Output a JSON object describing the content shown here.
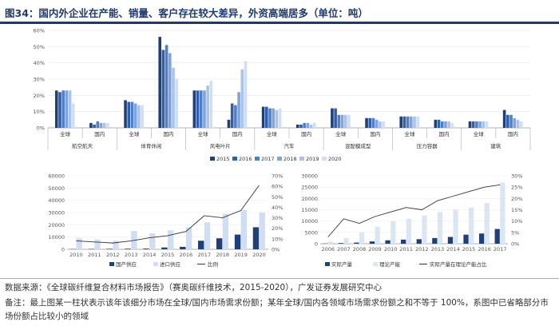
{
  "header": {
    "title": "图34：国内外企业在产能、销量、客户存在较大差异，外资高端居多（单位：吨）"
  },
  "colors": {
    "s2015": "#1f3f78",
    "s2016": "#2e5fa8",
    "s2017": "#4f7fc8",
    "s2018": "#7fa3da",
    "s2019": "#a9c3ea",
    "s2020": "#cfdef3",
    "domestic": "#1f3f78",
    "imports": "#cfdef3",
    "ratio_line": "#333333",
    "capacity": "#dbe6f5"
  },
  "chart_data": [
    {
      "type": "bar",
      "title": "",
      "series_names": [
        "2015",
        "2016",
        "2017",
        "2018",
        "2019",
        "2020"
      ],
      "y_ticks": [
        "0%",
        "10%",
        "20%",
        "30%",
        "40%",
        "50%",
        "60%"
      ],
      "ylim": [
        0,
        60
      ],
      "groups": [
        {
          "name": "航空航天",
          "subs": [
            {
              "name": "全球",
              "values": [
                23,
                22,
                23,
                23,
                23,
                15
              ]
            },
            {
              "name": "国内",
              "values": [
                3,
                2,
                4,
                3,
                3,
                3
              ]
            }
          ]
        },
        {
          "name": "体育休闲",
          "subs": [
            {
              "name": "全球",
              "values": [
                17,
                16,
                16,
                15,
                14,
                14
              ]
            },
            {
              "name": "国内",
              "values": [
                56,
                48,
                51,
                46,
                37,
                30
              ]
            }
          ]
        },
        {
          "name": "风电叶片",
          "subs": [
            {
              "name": "全球",
              "values": [
                23,
                23,
                23,
                23,
                26,
                29
              ]
            },
            {
              "name": "国内",
              "values": [
                5,
                15,
                14,
                22,
                36,
                41
              ]
            }
          ]
        },
        {
          "name": "汽车",
          "subs": [
            {
              "name": "全球",
              "values": [
                13,
                13,
                12,
                12,
                11,
                12
              ]
            },
            {
              "name": "国内",
              "values": [
                2,
                2,
                3,
                3,
                2,
                3
              ]
            }
          ]
        },
        {
          "name": "混配模成型",
          "subs": [
            {
              "name": "全球",
              "values": [
                12,
                12,
                8,
                8,
                8,
                8
              ]
            },
            {
              "name": "国内",
              "values": [
                6,
                6,
                6,
                5,
                4,
                4
              ]
            }
          ]
        },
        {
          "name": "压力容器",
          "subs": [
            {
              "name": "全球",
              "values": [
                7,
                7,
                7,
                7,
                7,
                7
              ]
            },
            {
              "name": "国内",
              "values": [
                5,
                5,
                4,
                4,
                4,
                3
              ]
            }
          ]
        },
        {
          "name": "建筑",
          "subs": [
            {
              "name": "全球",
              "values": [
                4,
                4,
                4,
                4,
                4,
                4
              ]
            },
            {
              "name": "国内",
              "values": [
                11,
                8,
                8,
                6,
                5,
                4
              ]
            }
          ]
        }
      ]
    },
    {
      "type": "bar+line",
      "categories": [
        "2010",
        "2011",
        "2012",
        "2013",
        "2014",
        "2015",
        "2016",
        "2017",
        "2018",
        "2019",
        "2020"
      ],
      "series": [
        {
          "name": "国产供应",
          "values": [
            200,
            300,
            400,
            500,
            600,
            1500,
            2000,
            7000,
            9000,
            12000,
            18000
          ]
        },
        {
          "name": "进口供应",
          "values": [
            9000,
            8000,
            7000,
            15000,
            13000,
            15500,
            18000,
            22000,
            29000,
            32000,
            30000
          ]
        }
      ],
      "line": {
        "name": "比例",
        "values": [
          8,
          7,
          6,
          8,
          11,
          13,
          17,
          32,
          30,
          37,
          61
        ]
      },
      "y_left_ticks": [
        "0",
        "10000",
        "20000",
        "30000",
        "40000",
        "50000",
        "60000"
      ],
      "y_right_ticks": [
        "0%",
        "10%",
        "20%",
        "30%",
        "40%",
        "50%",
        "60%",
        "70%"
      ],
      "ylim_left": [
        0,
        60000
      ],
      "ylim_right": [
        0,
        70
      ]
    },
    {
      "type": "bar+line",
      "categories": [
        "2006",
        "2007",
        "2008",
        "2009",
        "2010",
        "2011",
        "2012",
        "2013",
        "2014",
        "2015",
        "2016",
        "2017"
      ],
      "series": [
        {
          "name": "实际产量",
          "values": [
            100,
            300,
            500,
            1000,
            1500,
            1800,
            2000,
            2500,
            3000,
            4000,
            4500,
            6500
          ]
        },
        {
          "name": "理论产能",
          "values": [
            1000,
            2500,
            5000,
            7500,
            10000,
            11000,
            12500,
            14000,
            15000,
            16000,
            18000,
            27000
          ]
        }
      ],
      "line": {
        "name": "实际产量在理论产能占比",
        "values": [
          3,
          11,
          9,
          12,
          14,
          16,
          15,
          19,
          21,
          23,
          25,
          26
        ]
      },
      "y_left_ticks": [
        "0",
        "5000",
        "10000",
        "15000",
        "20000",
        "25000",
        "30000"
      ],
      "y_right_ticks": [
        "0%",
        "5%",
        "10%",
        "15%",
        "20%",
        "25%",
        "30%"
      ],
      "ylim_left": [
        0,
        30000
      ],
      "ylim_right": [
        0,
        30
      ]
    }
  ],
  "footer": {
    "source": "数据来源：《全球碳纤维复合材料市场报告》（赛奥碳纤维技术，2015-2020），广发证券发展研究中心",
    "note": "备注：最上图某一柱状表示该年该细分市场在全球/国内市场需求份额；某年全球/国内各领域市场需求份额之和不等于 100%，系图中已省略部分市场份额占比较小的领域"
  }
}
